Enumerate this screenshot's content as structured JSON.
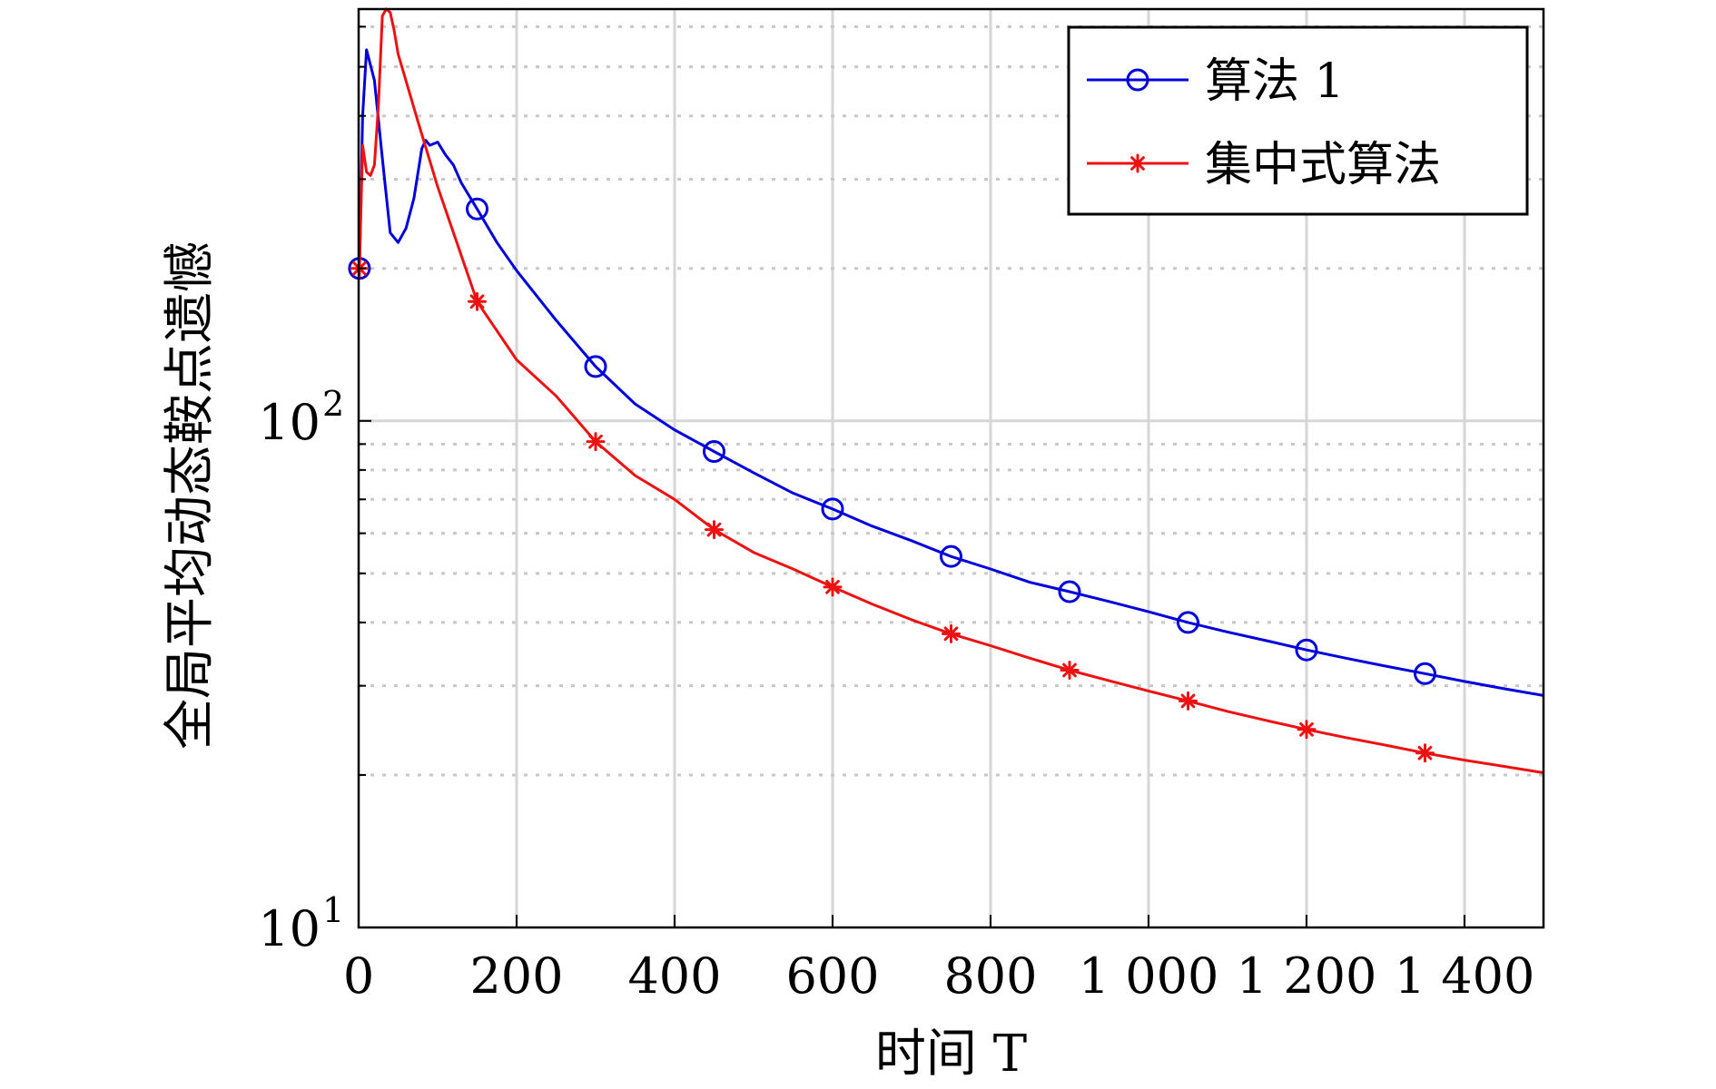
{
  "chart_data": {
    "type": "line",
    "xlabel": "时间 T",
    "ylabel": "全局平均动态鞍点遗憾",
    "x_scale": "linear",
    "y_scale": "log",
    "xlim": [
      0,
      1500
    ],
    "ylim": [
      10,
      650
    ],
    "x_ticks": [
      0,
      200,
      400,
      600,
      800,
      1000,
      1200,
      1400
    ],
    "x_tick_labels": [
      "0",
      "200",
      "400",
      "600",
      "800",
      "1 000",
      "1 200",
      "1 400"
    ],
    "y_major_ticks": [
      {
        "value": 10,
        "base": "10",
        "exp": "1"
      },
      {
        "value": 100,
        "base": "10",
        "exp": "2"
      }
    ],
    "y_minor_ticks": [
      20,
      30,
      40,
      50,
      60,
      70,
      80,
      90,
      200,
      300,
      400,
      500,
      600
    ],
    "grid": true,
    "legend_position": "top-right",
    "series": [
      {
        "name": "算法 1",
        "color": "#0000dd",
        "marker": "circle",
        "x": [
          1,
          5,
          10,
          20,
          30,
          40,
          50,
          60,
          70,
          80,
          85,
          90,
          100,
          110,
          120,
          130,
          150,
          175,
          200,
          250,
          300,
          350,
          400,
          450,
          500,
          550,
          600,
          650,
          700,
          750,
          800,
          850,
          900,
          950,
          1000,
          1050,
          1100,
          1150,
          1200,
          1250,
          1300,
          1350,
          1400,
          1450,
          1500
        ],
        "y": [
          200,
          400,
          540,
          470,
          330,
          235,
          225,
          240,
          275,
          345,
          358,
          350,
          355,
          335,
          320,
          295,
          262,
          225,
          198,
          158,
          128,
          108,
          96,
          87,
          79,
          72,
          67,
          62,
          58,
          54,
          51,
          48,
          46,
          44,
          42,
          40,
          38.3,
          36.8,
          35.3,
          34.0,
          32.8,
          31.7,
          30.6,
          29.6,
          28.7
        ],
        "marker_x": [
          1,
          150,
          300,
          450,
          600,
          750,
          900,
          1050,
          1200,
          1350
        ]
      },
      {
        "name": "集中式算法",
        "color": "#ee1111",
        "marker": "asterisk",
        "x": [
          1,
          5,
          10,
          15,
          20,
          25,
          30,
          35,
          40,
          45,
          50,
          75,
          100,
          150,
          200,
          250,
          300,
          350,
          400,
          450,
          500,
          550,
          600,
          650,
          700,
          750,
          800,
          850,
          900,
          950,
          1000,
          1050,
          1100,
          1150,
          1200,
          1250,
          1300,
          1350,
          1400,
          1450,
          1500
        ],
        "y": [
          200,
          350,
          310,
          305,
          320,
          420,
          630,
          660,
          640,
          590,
          530,
          390,
          290,
          172,
          132,
          112,
          91,
          78,
          70,
          61,
          55,
          51,
          47,
          43.5,
          40.5,
          38,
          36,
          34,
          32.2,
          30.7,
          29.3,
          28,
          26.7,
          25.6,
          24.6,
          23.7,
          22.9,
          22.1,
          21.4,
          20.8,
          20.2
        ],
        "marker_x": [
          1,
          150,
          300,
          450,
          600,
          750,
          900,
          1050,
          1200,
          1350
        ]
      }
    ]
  }
}
